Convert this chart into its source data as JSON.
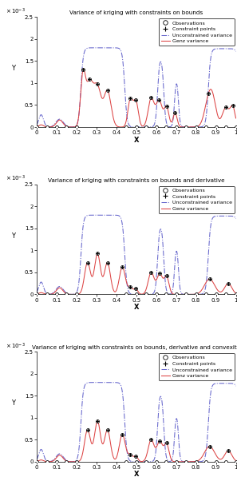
{
  "titles": [
    "Variance of kriging with constraints on bounds",
    "Variance of kriging with constraints on bounds and derivative",
    "Variance of kriging with constraints on bounds, derivative and convexity"
  ],
  "ylabel": "Y",
  "xlabel": "X",
  "ylim": [
    0,
    0.0025
  ],
  "xlim": [
    0,
    1
  ],
  "ytick_labels": [
    "0",
    "0.5",
    "1",
    "1.5",
    "2",
    "2.5"
  ],
  "xtick_labels": [
    "0",
    "0.1",
    "0.2",
    "0.3",
    "0.4",
    "0.5",
    "0.6",
    "0.7",
    "0.8",
    "0.9",
    "1"
  ],
  "legend_entries": [
    "Observations",
    "Constraint points",
    "Unconstrained variance",
    "Genz variance"
  ],
  "unconstrained_color": "#6666cc",
  "genz_color": "#dd4444"
}
